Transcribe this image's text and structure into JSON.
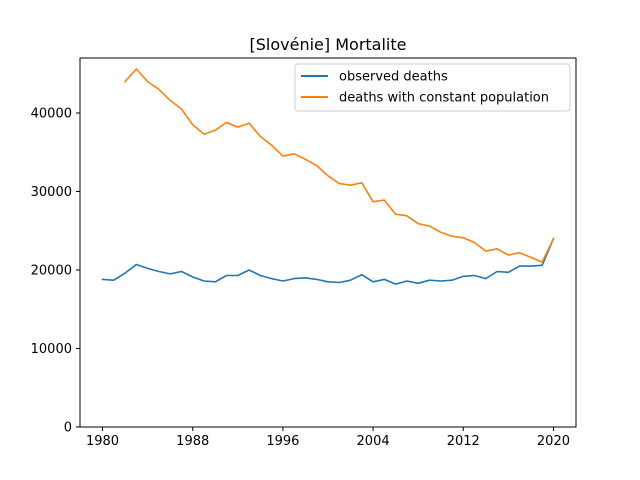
{
  "chart_data": {
    "type": "line",
    "title": "[Slovénie] Mortalite",
    "xlabel": "",
    "ylabel": "",
    "xlim": [
      1978,
      2022
    ],
    "ylim": [
      0,
      47000
    ],
    "x_ticks": [
      1980,
      1988,
      1996,
      2004,
      2012,
      2020
    ],
    "y_ticks": [
      0,
      10000,
      20000,
      30000,
      40000
    ],
    "x_tick_labels": [
      "1980",
      "1988",
      "1996",
      "2004",
      "2012",
      "2020"
    ],
    "y_tick_labels": [
      "0",
      "10000",
      "20000",
      "30000",
      "40000"
    ],
    "grid": false,
    "legend_position": "upper right",
    "series": [
      {
        "name": "observed deaths",
        "color": "#1f77b4",
        "x": [
          1980,
          1981,
          1982,
          1983,
          1984,
          1985,
          1986,
          1987,
          1988,
          1989,
          1990,
          1991,
          1992,
          1993,
          1994,
          1995,
          1996,
          1997,
          1998,
          1999,
          2000,
          2001,
          2002,
          2003,
          2004,
          2005,
          2006,
          2007,
          2008,
          2009,
          2010,
          2011,
          2012,
          2013,
          2014,
          2015,
          2016,
          2017,
          2018,
          2019,
          2020
        ],
        "values": [
          18800,
          18700,
          19600,
          20700,
          20200,
          19800,
          19500,
          19800,
          19100,
          18600,
          18500,
          19300,
          19300,
          20000,
          19300,
          18900,
          18600,
          18900,
          19000,
          18800,
          18500,
          18400,
          18700,
          19400,
          18500,
          18800,
          18200,
          18600,
          18300,
          18700,
          18600,
          18700,
          19200,
          19300,
          18900,
          19800,
          19700,
          20500,
          20500,
          20600,
          24000
        ]
      },
      {
        "name": "deaths with constant population",
        "color": "#ff7f0e",
        "x": [
          1982,
          1983,
          1984,
          1985,
          1986,
          1987,
          1988,
          1989,
          1990,
          1991,
          1992,
          1993,
          1994,
          1995,
          1996,
          1997,
          1998,
          1999,
          2000,
          2001,
          2002,
          2003,
          2004,
          2005,
          2006,
          2007,
          2008,
          2009,
          2010,
          2011,
          2012,
          2013,
          2014,
          2015,
          2016,
          2017,
          2018,
          2019,
          2020
        ],
        "values": [
          44000,
          45600,
          44000,
          43000,
          41600,
          40500,
          38500,
          37300,
          37800,
          38800,
          38200,
          38700,
          37000,
          35900,
          34500,
          34800,
          34100,
          33300,
          32000,
          31000,
          30800,
          31100,
          28700,
          28900,
          27100,
          26900,
          25900,
          25600,
          24800,
          24300,
          24100,
          23500,
          22400,
          22700,
          21900,
          22200,
          21600,
          21000,
          24000
        ]
      }
    ]
  }
}
